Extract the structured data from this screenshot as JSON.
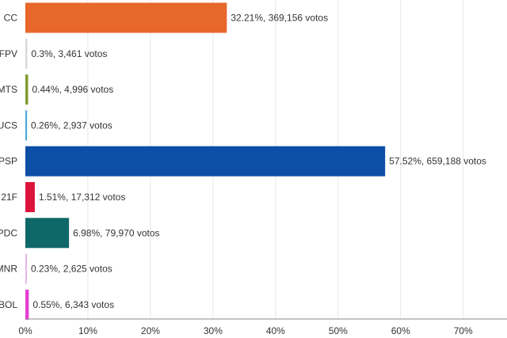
{
  "chart_data": {
    "type": "bar",
    "orientation": "horizontal",
    "categories": [
      "CC",
      "FPV",
      "MTS",
      "UCS",
      "PSP",
      "21F",
      "PDC",
      "MNR",
      "BOL"
    ],
    "values": [
      32.21,
      0.3,
      0.44,
      0.26,
      57.52,
      1.51,
      6.98,
      0.23,
      0.55
    ],
    "votes": [
      369156,
      3461,
      4996,
      2937,
      659188,
      17312,
      79970,
      2625,
      6343
    ],
    "data_labels": [
      "32.21%,  369,156 votos",
      "0.3%,  3,461 votos",
      "0.44%,  4,996 votos",
      "0.26%,  2,937 votos",
      "57.52%,  659,188 votos",
      "1.51%,  17,312 votos",
      "6.98%,  79,970 votos",
      "0.23%,  2,625 votos",
      "0.55%,  6,343 votos"
    ],
    "colors": [
      "#e8672a",
      "#d7d7d7",
      "#7f9a2e",
      "#4aa6d9",
      "#0d4ea6",
      "#dc143c",
      "#0e6868",
      "#e7b7e6",
      "#e63fd2"
    ],
    "xlim": [
      0,
      77
    ],
    "xticks": [
      0,
      10,
      20,
      30,
      40,
      50,
      60,
      70
    ],
    "xtick_labels": [
      "0%",
      "10%",
      "20%",
      "30%",
      "40%",
      "50%",
      "60%",
      "70%"
    ],
    "grid": true,
    "title": "",
    "xlabel": "",
    "ylabel": ""
  }
}
